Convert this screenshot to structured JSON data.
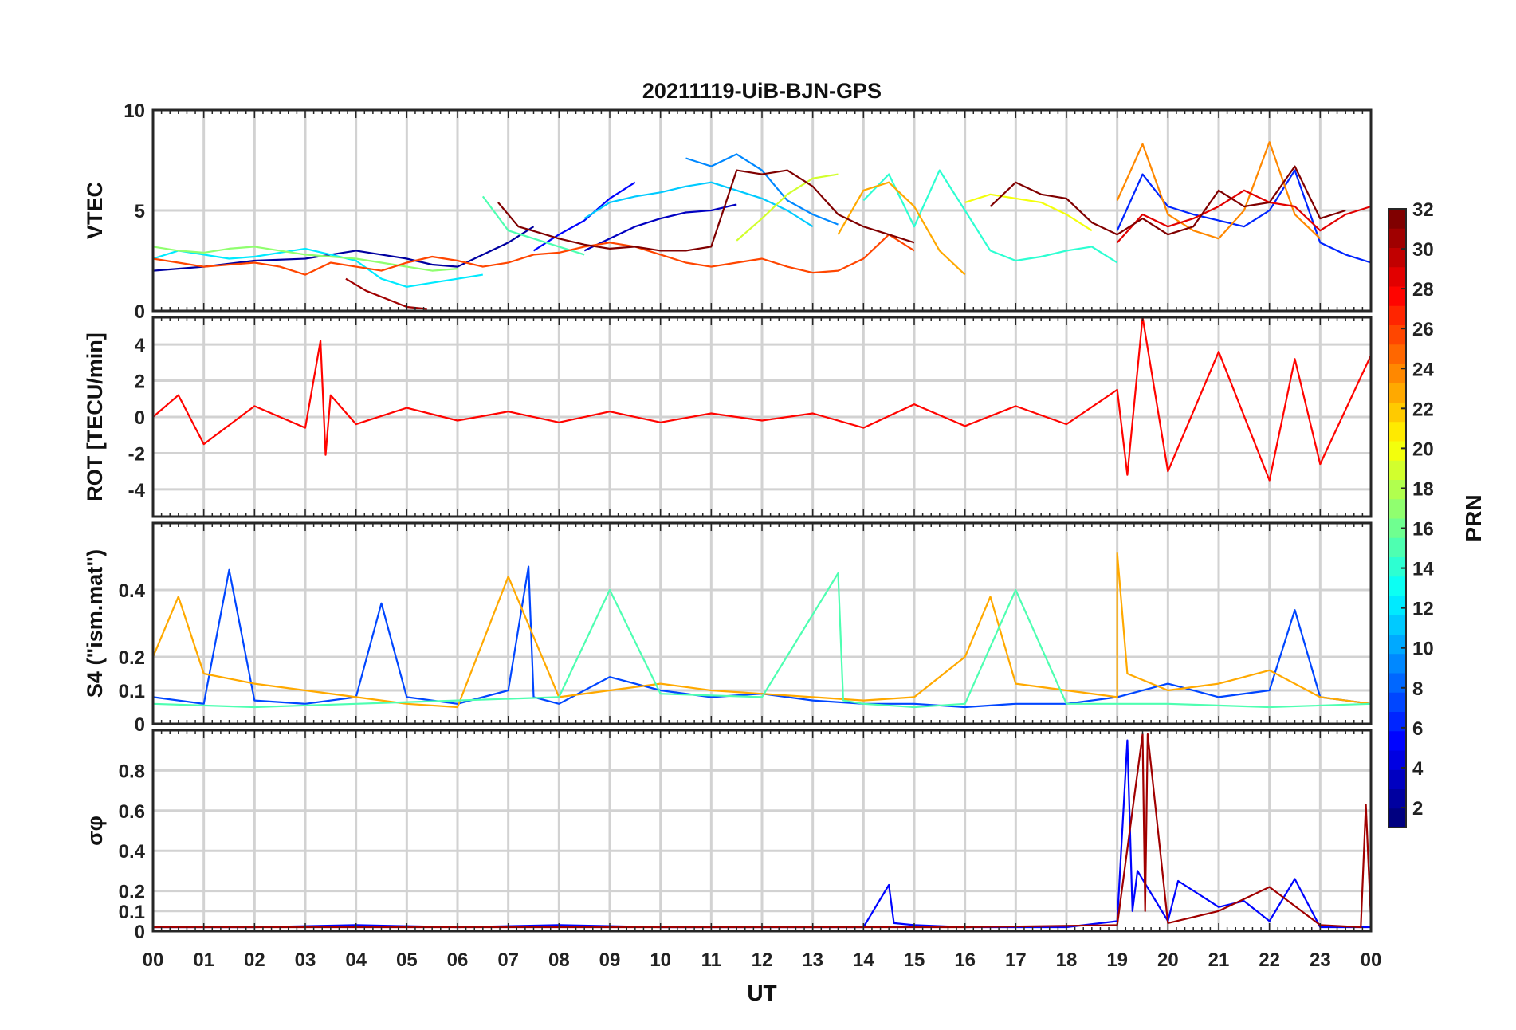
{
  "figure": {
    "title": "20211119-UiB-BJN-GPS",
    "xlabel": "UT"
  },
  "chart_data": [
    {
      "type": "line",
      "panel": "vtec",
      "title": "20211119-UiB-BJN-GPS",
      "ylabel": "VTEC",
      "ylim": [
        0,
        10
      ],
      "yticks": [
        "0",
        "5",
        "10"
      ],
      "xlim": [
        0,
        24
      ],
      "xticks": [
        "00",
        "01",
        "02",
        "03",
        "04",
        "05",
        "06",
        "07",
        "08",
        "09",
        "10",
        "11",
        "12",
        "13",
        "14",
        "15",
        "16",
        "17",
        "18",
        "19",
        "20",
        "21",
        "22",
        "23",
        "00"
      ],
      "grid": true,
      "series": [
        {
          "prn": 2,
          "x": [
            0,
            1,
            2,
            3,
            3.5,
            4,
            4.5,
            5,
            5.5,
            6,
            6.5,
            7,
            7.5
          ],
          "y": [
            2.0,
            2.2,
            2.5,
            2.6,
            2.8,
            3.0,
            2.8,
            2.6,
            2.3,
            2.2,
            2.8,
            3.4,
            4.2
          ]
        },
        {
          "prn": 3,
          "x": [
            8.5,
            9,
            9.5,
            10,
            10.5,
            11,
            11.5
          ],
          "y": [
            3.0,
            3.6,
            4.2,
            4.6,
            4.9,
            5.0,
            5.3
          ]
        },
        {
          "prn": 5,
          "x": [
            7.5,
            8,
            8.5,
            9,
            9.5
          ],
          "y": [
            3.0,
            3.8,
            4.5,
            5.6,
            6.4
          ]
        },
        {
          "prn": 6,
          "x": [
            19,
            19.5,
            20,
            20.5,
            21,
            21.5,
            22,
            22.5,
            23,
            23.5,
            24
          ],
          "y": [
            4.0,
            6.8,
            5.2,
            4.8,
            4.5,
            4.2,
            5.0,
            7.0,
            3.4,
            2.8,
            2.4
          ]
        },
        {
          "prn": 9,
          "x": [
            10.5,
            11,
            11.5,
            12,
            12.5,
            13,
            13.5
          ],
          "y": [
            7.6,
            7.2,
            7.8,
            7.0,
            5.5,
            4.8,
            4.3
          ]
        },
        {
          "prn": 11,
          "x": [
            8.5,
            9,
            9.5,
            10,
            10.5,
            11,
            11.5,
            12,
            12.5,
            13
          ],
          "y": [
            4.6,
            5.4,
            5.7,
            5.9,
            6.2,
            6.4,
            6.0,
            5.6,
            5.0,
            4.2
          ]
        },
        {
          "prn": 12,
          "x": [
            0,
            0.5,
            1,
            1.5,
            2,
            2.5,
            3,
            3.5,
            4,
            4.5,
            5,
            5.5,
            6,
            6.5
          ],
          "y": [
            2.6,
            3.0,
            2.8,
            2.6,
            2.7,
            2.9,
            3.1,
            2.8,
            2.5,
            1.6,
            1.2,
            1.4,
            1.6,
            1.8
          ]
        },
        {
          "prn": 14,
          "x": [
            14,
            14.5,
            15,
            15.5,
            16,
            16.5,
            17,
            17.5,
            18,
            18.5,
            19
          ],
          "y": [
            5.5,
            6.8,
            4.2,
            7.0,
            5.0,
            3.0,
            2.5,
            2.7,
            3.0,
            3.2,
            2.4
          ]
        },
        {
          "prn": 15,
          "x": [
            6.5,
            7,
            7.5,
            8,
            8.5
          ],
          "y": [
            5.7,
            4.0,
            3.6,
            3.2,
            2.8
          ]
        },
        {
          "prn": 17,
          "x": [
            0,
            0.5,
            1,
            1.5,
            2,
            2.5,
            3,
            3.5,
            4,
            4.5,
            5,
            5.5,
            6
          ],
          "y": [
            3.2,
            3.0,
            2.9,
            3.1,
            3.2,
            3.0,
            2.8,
            2.7,
            2.6,
            2.4,
            2.2,
            2.0,
            2.1
          ]
        },
        {
          "prn": 19,
          "x": [
            11.5,
            12,
            12.5,
            13,
            13.5
          ],
          "y": [
            3.5,
            4.6,
            5.8,
            6.6,
            6.8
          ]
        },
        {
          "prn": 20,
          "x": [
            16,
            16.5,
            17,
            17.5,
            18,
            18.5
          ],
          "y": [
            5.4,
            5.8,
            5.6,
            5.4,
            4.8,
            4.0
          ]
        },
        {
          "prn": 23,
          "x": [
            13.5,
            14,
            14.5,
            15,
            15.5,
            16
          ],
          "y": [
            3.8,
            6.0,
            6.4,
            5.2,
            3.0,
            1.8
          ]
        },
        {
          "prn": 24,
          "x": [
            19,
            19.5,
            20,
            20.5,
            21,
            21.5,
            22,
            22.5,
            23
          ],
          "y": [
            5.5,
            8.3,
            4.8,
            4.0,
            3.6,
            5.0,
            8.4,
            4.8,
            3.6
          ]
        },
        {
          "prn": 26,
          "x": [
            0,
            0.5,
            1,
            1.5,
            2,
            2.5,
            3,
            3.5,
            4,
            4.5,
            5,
            5.5,
            6,
            6.5,
            7,
            7.5,
            8,
            8.5,
            9,
            9.5,
            10,
            10.5,
            11,
            11.5,
            12,
            12.5,
            13,
            13.5,
            14,
            14.5,
            15
          ],
          "y": [
            2.6,
            2.4,
            2.2,
            2.3,
            2.4,
            2.2,
            1.8,
            2.4,
            2.2,
            2.0,
            2.4,
            2.7,
            2.5,
            2.2,
            2.4,
            2.8,
            2.9,
            3.2,
            3.4,
            3.2,
            2.8,
            2.4,
            2.2,
            2.4,
            2.6,
            2.2,
            1.9,
            2.0,
            2.6,
            3.8,
            3.0
          ]
        },
        {
          "prn": 29,
          "x": [
            19,
            19.5,
            20,
            20.5,
            21,
            21.5,
            22,
            22.5,
            23,
            23.5,
            24
          ],
          "y": [
            3.4,
            4.8,
            4.2,
            4.6,
            5.2,
            6.0,
            5.4,
            5.2,
            4.0,
            4.8,
            5.2
          ]
        },
        {
          "prn": 31,
          "x": [
            3.8,
            4.2,
            4.6,
            5,
            5.4
          ],
          "y": [
            1.6,
            1.0,
            0.6,
            0.2,
            0.1
          ]
        },
        {
          "prn": 32,
          "x": [
            6.8,
            7.2,
            7.6,
            8,
            8.5,
            9,
            9.5,
            10,
            10.5,
            11,
            11.5,
            12,
            12.5,
            13,
            13.5,
            14,
            14.5,
            15
          ],
          "y": [
            5.4,
            4.2,
            3.9,
            3.6,
            3.3,
            3.1,
            3.2,
            3.0,
            3.0,
            3.2,
            7.0,
            6.8,
            7.0,
            6.2,
            4.8,
            4.2,
            3.8,
            3.4
          ]
        },
        {
          "prn": 32,
          "x": [
            16.5,
            17,
            17.5,
            18,
            18.5,
            19,
            19.5,
            20,
            20.5,
            21,
            21.5,
            22,
            22.5,
            23,
            23.5
          ],
          "y": [
            5.2,
            6.4,
            5.8,
            5.6,
            4.4,
            3.8,
            4.6,
            3.8,
            4.2,
            6.0,
            5.2,
            5.4,
            7.2,
            4.6,
            5.0
          ]
        }
      ]
    },
    {
      "type": "line",
      "panel": "rot",
      "ylabel": "ROT [TECU/min]",
      "ylim": [
        -5.5,
        5.5
      ],
      "yticks": [
        "-4",
        "-2",
        "0",
        "2",
        "4"
      ],
      "xlim": [
        0,
        24
      ],
      "grid": true,
      "series": [
        {
          "prn": 28,
          "x": [
            0,
            0.5,
            1,
            2,
            3,
            3.3,
            3.4,
            3.5,
            4,
            5,
            6,
            7,
            8,
            9,
            10,
            11,
            12,
            13,
            14,
            15,
            16,
            17,
            18,
            19,
            19.2,
            19.5,
            20,
            21,
            22,
            22.5,
            23,
            24
          ],
          "y": [
            0,
            1.2,
            -1.5,
            0.6,
            -0.6,
            4.2,
            -2.1,
            1.2,
            -0.4,
            0.5,
            -0.2,
            0.3,
            -0.3,
            0.3,
            -0.3,
            0.2,
            -0.2,
            0.2,
            -0.6,
            0.7,
            -0.5,
            0.6,
            -0.4,
            1.5,
            -3.2,
            5.5,
            -3.0,
            3.6,
            -3.5,
            3.2,
            -2.6,
            3.4
          ]
        }
      ]
    },
    {
      "type": "line",
      "panel": "s4",
      "ylabel": "S4 (\"ism.mat\")",
      "ylim": [
        0,
        0.6
      ],
      "yticks": [
        "0",
        "0.1",
        "0.2",
        "0.4"
      ],
      "xlim": [
        0,
        24
      ],
      "grid": true,
      "series": [
        {
          "prn": 7,
          "x": [
            0,
            1,
            1.5,
            2,
            3,
            4,
            4.5,
            5,
            6,
            7,
            7.4,
            7.5,
            8,
            9,
            10,
            11,
            12,
            13,
            14,
            15,
            16,
            17,
            18,
            19,
            20,
            21,
            22,
            22.5,
            23,
            24
          ],
          "y": [
            0.08,
            0.06,
            0.46,
            0.07,
            0.06,
            0.08,
            0.36,
            0.08,
            0.06,
            0.1,
            0.47,
            0.08,
            0.06,
            0.14,
            0.1,
            0.08,
            0.09,
            0.07,
            0.06,
            0.06,
            0.05,
            0.06,
            0.06,
            0.08,
            0.12,
            0.08,
            0.1,
            0.34,
            0.08,
            0.06
          ]
        },
        {
          "prn": 23,
          "x": [
            0,
            0.5,
            1,
            2,
            3,
            4,
            5,
            6,
            7,
            8,
            9,
            10,
            11,
            12,
            13,
            14,
            15,
            16,
            16.5,
            17,
            18,
            19,
            19.0,
            19.2,
            20,
            21,
            22,
            23,
            24
          ],
          "y": [
            0.2,
            0.38,
            0.15,
            0.12,
            0.1,
            0.08,
            0.06,
            0.05,
            0.44,
            0.08,
            0.1,
            0.12,
            0.1,
            0.09,
            0.08,
            0.07,
            0.08,
            0.2,
            0.38,
            0.12,
            0.1,
            0.08,
            0.51,
            0.15,
            0.1,
            0.12,
            0.16,
            0.08,
            0.06
          ]
        },
        {
          "prn": 15,
          "x": [
            0,
            2,
            4,
            6,
            8,
            9,
            10,
            12,
            13.5,
            13.6,
            14,
            15,
            16,
            17,
            18,
            20,
            22,
            24
          ],
          "y": [
            0.06,
            0.05,
            0.06,
            0.07,
            0.08,
            0.4,
            0.09,
            0.08,
            0.45,
            0.07,
            0.06,
            0.05,
            0.06,
            0.4,
            0.06,
            0.06,
            0.05,
            0.06
          ]
        }
      ]
    },
    {
      "type": "line",
      "panel": "sigma_phi",
      "ylabel": "σφ",
      "ylim": [
        0,
        1
      ],
      "yticks": [
        "0",
        "0.1",
        "0.2",
        "0.4",
        "0.6",
        "0.8"
      ],
      "xlim": [
        0,
        24
      ],
      "grid": true,
      "series": [
        {
          "prn": 5,
          "x": [
            0,
            2,
            4,
            6,
            8,
            10,
            12,
            14,
            14.5,
            14.6,
            15,
            16,
            18,
            19,
            19.2,
            19.3,
            19.4,
            20,
            20.2,
            21,
            21.5,
            22,
            22.5,
            23,
            24
          ],
          "y": [
            0.02,
            0.02,
            0.03,
            0.02,
            0.03,
            0.02,
            0.02,
            0.02,
            0.23,
            0.04,
            0.03,
            0.02,
            0.02,
            0.05,
            0.95,
            0.1,
            0.3,
            0.05,
            0.25,
            0.12,
            0.15,
            0.05,
            0.26,
            0.02,
            0.02
          ]
        },
        {
          "prn": 31,
          "x": [
            0,
            4,
            8,
            12,
            16,
            19,
            19.5,
            19.55,
            19.6,
            20,
            21,
            22,
            23,
            23.8,
            23.9,
            24
          ],
          "y": [
            0.02,
            0.02,
            0.02,
            0.02,
            0.02,
            0.03,
            0.98,
            0.1,
            0.98,
            0.04,
            0.1,
            0.22,
            0.03,
            0.02,
            0.63,
            0.05
          ]
        }
      ]
    }
  ],
  "colorbar": {
    "label": "PRN",
    "range": [
      1,
      32
    ],
    "ticks": [
      "2",
      "4",
      "6",
      "8",
      "10",
      "12",
      "14",
      "16",
      "18",
      "20",
      "22",
      "24",
      "26",
      "28",
      "30",
      "32"
    ]
  }
}
